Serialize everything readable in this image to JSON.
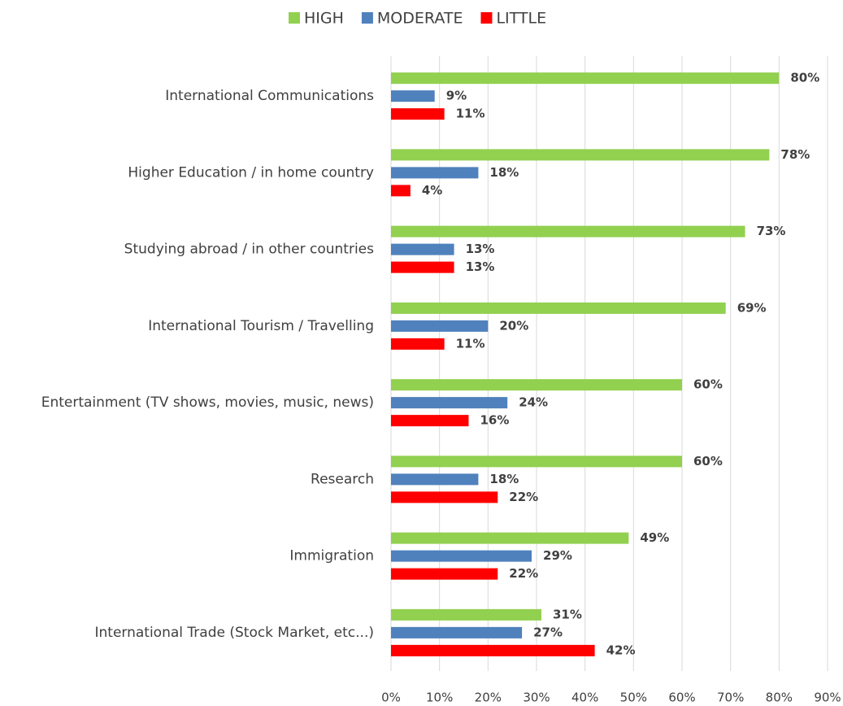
{
  "chart_data": {
    "type": "bar",
    "orientation": "horizontal",
    "categories": [
      "International Communications",
      "Higher Education / in home country",
      "Studying abroad / in other countries",
      "International Tourism / Travelling",
      "Entertainment (TV shows, movies, music, news)",
      "Research",
      "Immigration",
      "International Trade (Stock Market, etc...)"
    ],
    "series": [
      {
        "name": "HIGH",
        "color": "#92d050",
        "values": [
          80,
          78,
          73,
          69,
          60,
          60,
          49,
          31
        ],
        "value_labels": [
          "80%",
          "78%",
          "73%",
          "69%",
          "60%",
          "60%",
          "49%",
          "31%"
        ]
      },
      {
        "name": "MODERATE",
        "color": "#4f81bd",
        "values": [
          9,
          18,
          13,
          20,
          24,
          18,
          29,
          27
        ],
        "value_labels": [
          "9%",
          "18%",
          "13%",
          "20%",
          "24%",
          "18%",
          "29%",
          "27%"
        ]
      },
      {
        "name": "LITTLE",
        "color": "#ff0000",
        "values": [
          11,
          4,
          13,
          11,
          16,
          22,
          22,
          42
        ],
        "value_labels": [
          "11%",
          "4%",
          "13%",
          "11%",
          "16%",
          "22%",
          "22%",
          "42%"
        ]
      }
    ],
    "xlim": [
      0,
      90
    ],
    "xticks": [
      {
        "value": 0,
        "label": "0%"
      },
      {
        "value": 10,
        "label": "10%"
      },
      {
        "value": 20,
        "label": "20%"
      },
      {
        "value": 30,
        "label": "30%"
      },
      {
        "value": 40,
        "label": "40%"
      },
      {
        "value": 50,
        "label": "50%"
      },
      {
        "value": 60,
        "label": "60%"
      },
      {
        "value": 70,
        "label": "70%"
      },
      {
        "value": 80,
        "label": "80%"
      },
      {
        "value": 90,
        "label": "90%"
      }
    ],
    "grid": true,
    "legend": "top"
  }
}
